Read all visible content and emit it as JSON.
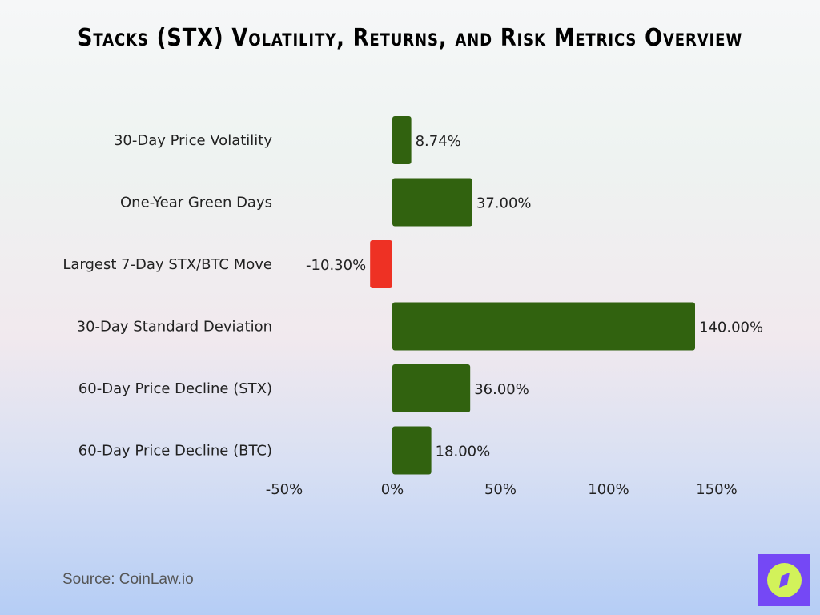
{
  "title": "Stacks (STX) Volatility, Returns, and Risk Metrics Overview",
  "source": "Source: CoinLaw.io",
  "logo_icon": "compass-icon",
  "chart_data": {
    "type": "bar",
    "orientation": "horizontal",
    "categories": [
      "30-Day Price Volatility",
      "One-Year Green Days",
      "Largest 7-Day STX/BTC Move",
      "30-Day Standard Deviation",
      "60-Day Price Decline (STX)",
      "60-Day Price Decline (BTC)"
    ],
    "values": [
      8.74,
      37.0,
      -10.3,
      140.0,
      36.0,
      18.0
    ],
    "data_labels": [
      "8.74%",
      "37.00%",
      "-10.30%",
      "140.00%",
      "36.00%",
      "18.00%"
    ],
    "xlim": [
      -50,
      150
    ],
    "xticks": [
      -50,
      0,
      50,
      100,
      150
    ],
    "xtick_labels": [
      "-50%",
      "0%",
      "50%",
      "100%",
      "150%"
    ],
    "colors": {
      "positive": "#31620f",
      "negative": "#ee3124"
    },
    "grid": false
  }
}
